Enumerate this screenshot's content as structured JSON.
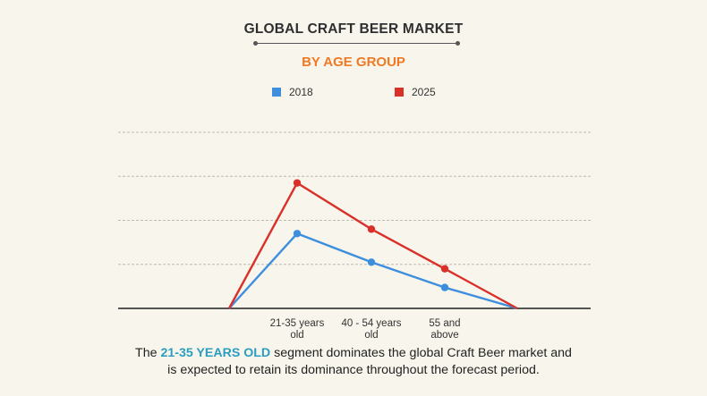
{
  "title": "GLOBAL CRAFT BEER MARKET",
  "subtitle": "BY AGE GROUP",
  "colors": {
    "title": "#2f2f2f",
    "subtitle": "#f07a24",
    "series_2018": "#3d8fde",
    "series_2025": "#d9302a",
    "highlight": "#2a9ec0",
    "background": "#f8f5ec"
  },
  "chart_data": {
    "type": "line",
    "categories": [
      "",
      "21-35 years old",
      "40 - 54 years old",
      "55 and above",
      ""
    ],
    "category_label_lines": [
      [],
      [
        "21-35 years",
        "old"
      ],
      [
        "40 - 54 years",
        "old"
      ],
      [
        "55 and",
        "above"
      ],
      []
    ],
    "series": [
      {
        "name": "2018",
        "values": [
          0,
          3.4,
          2.1,
          0.95,
          0
        ]
      },
      {
        "name": "2025",
        "values": [
          0,
          5.7,
          3.6,
          1.8,
          0
        ]
      }
    ],
    "ylim": [
      0,
      8
    ],
    "y_gridlines": [
      2,
      4,
      6,
      8
    ],
    "grid": true,
    "legend_position": "top-center",
    "xlabel": "",
    "ylabel": ""
  },
  "caption": {
    "prefix": "The ",
    "highlight": "21-35 YEARS OLD",
    "rest_line1": " segment dominates the global Craft Beer market and",
    "line2": "is expected to retain its dominance throughout the forecast period."
  }
}
